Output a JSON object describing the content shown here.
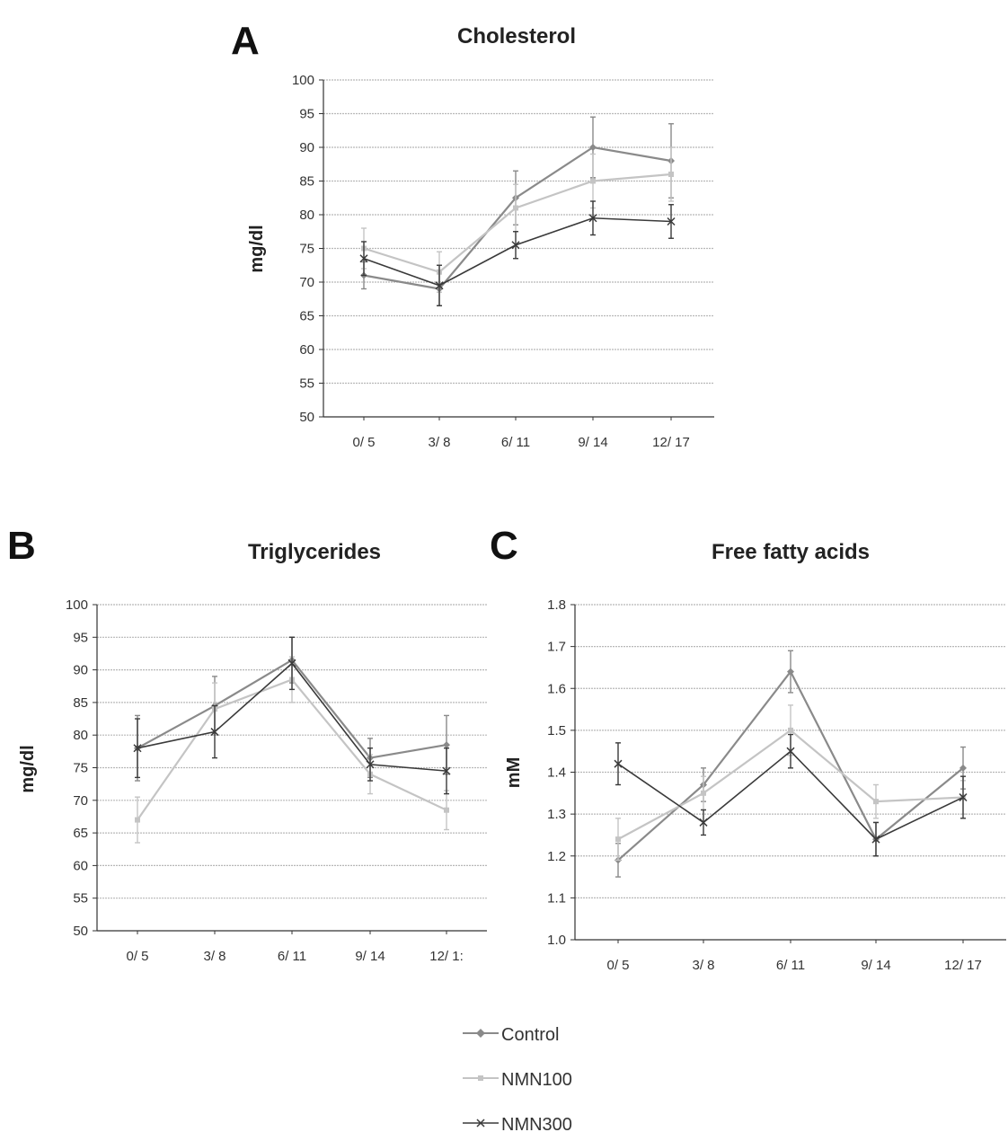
{
  "chart_data": [
    {
      "panel": "A",
      "type": "line",
      "title": "Cholesterol",
      "xlabel": "",
      "ylabel": "mg/dl",
      "categories": [
        "0/ 5",
        "3/ 8",
        "6/ 11",
        "9/ 14",
        "12/ 17"
      ],
      "ylim": [
        50,
        100
      ],
      "yticks": [
        "50",
        "55",
        "60",
        "65",
        "70",
        "75",
        "80",
        "85",
        "90",
        "95",
        "100"
      ],
      "grid": true,
      "series": [
        {
          "name": "Control",
          "values": [
            71,
            69,
            82.5,
            90,
            88
          ],
          "errors": [
            2,
            2.5,
            4,
            4.5,
            5.5
          ]
        },
        {
          "name": "NMN100",
          "values": [
            75,
            71.5,
            81,
            85,
            86
          ],
          "errors": [
            3,
            3,
            3.5,
            4,
            4
          ]
        },
        {
          "name": "NMN300",
          "values": [
            73.5,
            69.5,
            75.5,
            79.5,
            79
          ],
          "errors": [
            2.5,
            3,
            2,
            2.5,
            2.5
          ]
        }
      ]
    },
    {
      "panel": "B",
      "type": "line",
      "title": "Triglycerides",
      "xlabel": "",
      "ylabel": "mg/dl",
      "categories": [
        "0/ 5",
        "3/ 8",
        "6/ 11",
        "9/ 14",
        "12/ 1:"
      ],
      "ylim": [
        50,
        100
      ],
      "yticks": [
        "50",
        "55",
        "60",
        "65",
        "70",
        "75",
        "80",
        "85",
        "90",
        "95",
        "100"
      ],
      "grid": true,
      "series": [
        {
          "name": "Control",
          "values": [
            78,
            84.5,
            91.5,
            76.5,
            78.5
          ],
          "errors": [
            5,
            4.5,
            3.5,
            3,
            4.5
          ]
        },
        {
          "name": "NMN100",
          "values": [
            67,
            84,
            88.5,
            74,
            68.5
          ],
          "errors": [
            3.5,
            4,
            3.5,
            3,
            3
          ]
        },
        {
          "name": "NMN300",
          "values": [
            78,
            80.5,
            91,
            75.5,
            74.5
          ],
          "errors": [
            4.5,
            4,
            4,
            2.5,
            3.5
          ]
        }
      ]
    },
    {
      "panel": "C",
      "type": "line",
      "title": "Free fatty acids",
      "xlabel": "",
      "ylabel": "mM",
      "categories": [
        "0/ 5",
        "3/ 8",
        "6/ 11",
        "9/ 14",
        "12/ 17"
      ],
      "ylim": [
        1.0,
        1.8
      ],
      "yticks": [
        "1.0",
        "1.1",
        "1.2",
        "1.3",
        "1.4",
        "1.5",
        "1.6",
        "1.7",
        "1.8"
      ],
      "grid": true,
      "series": [
        {
          "name": "Control",
          "values": [
            1.19,
            1.37,
            1.64,
            1.24,
            1.41
          ],
          "errors": [
            0.04,
            0.04,
            0.05,
            0.04,
            0.05
          ]
        },
        {
          "name": "NMN100",
          "values": [
            1.24,
            1.35,
            1.5,
            1.33,
            1.34
          ],
          "errors": [
            0.05,
            0.04,
            0.06,
            0.04,
            0.04
          ]
        },
        {
          "name": "NMN300",
          "values": [
            1.42,
            1.28,
            1.45,
            1.24,
            1.34
          ],
          "errors": [
            0.05,
            0.03,
            0.04,
            0.04,
            0.05
          ]
        }
      ]
    }
  ],
  "legend": {
    "items": [
      {
        "label": "Control",
        "color": "#8a8a8a"
      },
      {
        "label": "NMN100",
        "color": "#c4c4c4"
      },
      {
        "label": "NMN300",
        "color": "#3a3a3a"
      }
    ]
  },
  "colors": {
    "grid": "#b8b8b8",
    "axis": "#333333",
    "Control": "#8a8a8a",
    "NMN100": "#c4c4c4",
    "NMN300": "#3a3a3a"
  }
}
